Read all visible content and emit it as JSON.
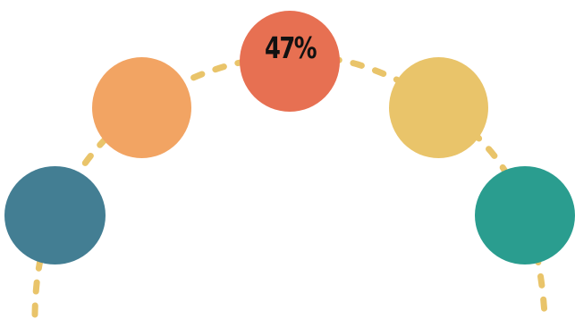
{
  "center_value": "47%",
  "nodes": [
    {
      "id": "teal-blue",
      "color": "#437E93"
    },
    {
      "id": "light-orange",
      "color": "#F2A463"
    },
    {
      "id": "coral",
      "color": "#E77052"
    },
    {
      "id": "mustard",
      "color": "#E9C46A"
    },
    {
      "id": "teal-green",
      "color": "#2A9D8F"
    }
  ],
  "connector_color": "#E9C46A"
}
